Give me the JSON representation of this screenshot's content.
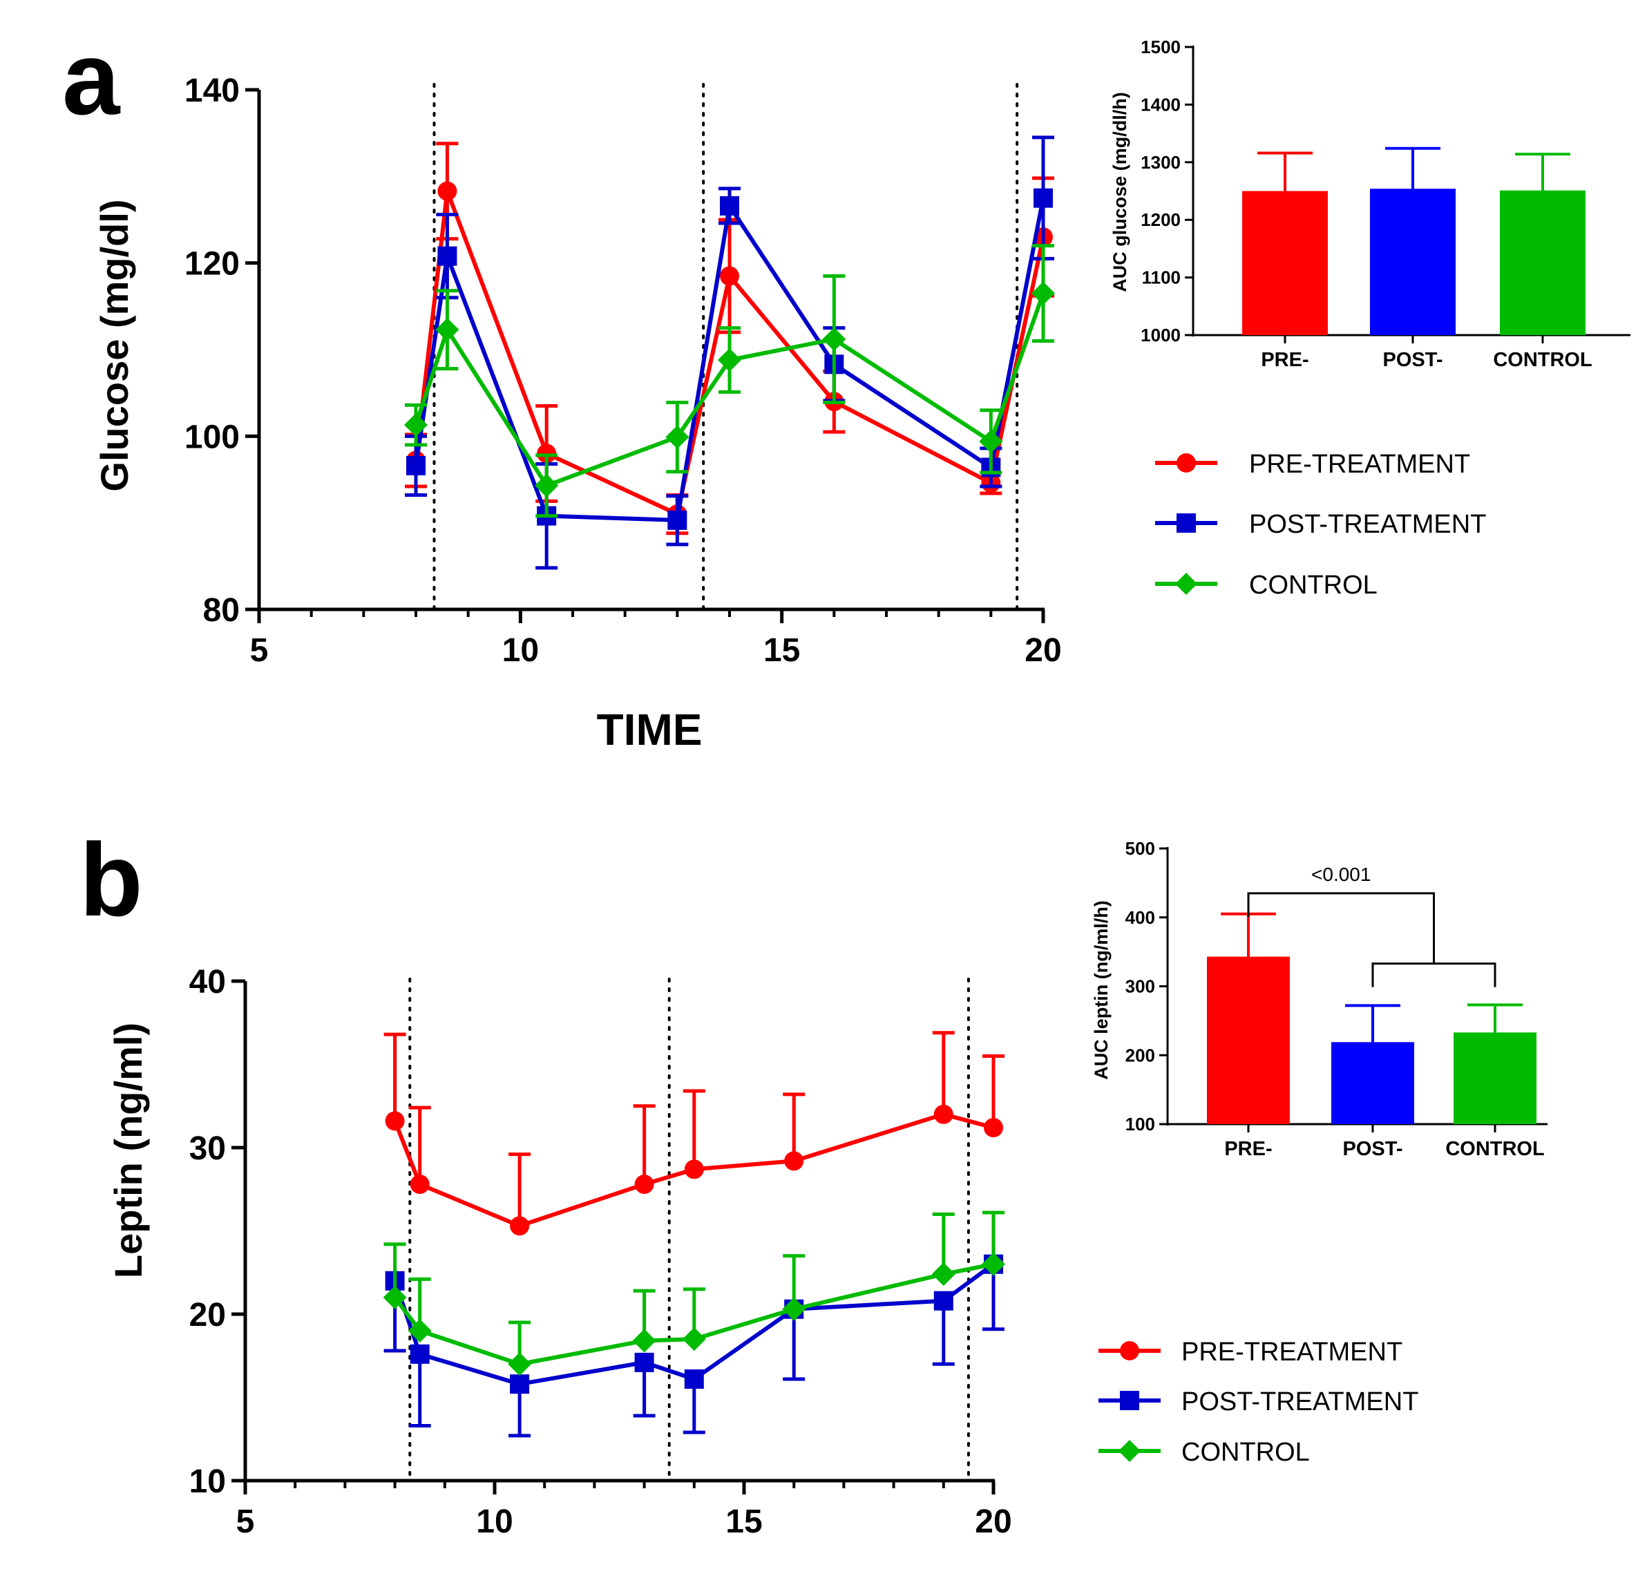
{
  "chart_data": [
    {
      "panel": "a",
      "type": "line",
      "xlabel": "TIME",
      "ylabel": "Glucose (mg/dl)",
      "xlim": [
        5,
        20
      ],
      "ylim": [
        80,
        140
      ],
      "xticks": [
        "5",
        "10",
        "15",
        "20"
      ],
      "yticks": [
        "80",
        "100",
        "120",
        "140"
      ],
      "vlines": [
        8.35,
        13.5,
        19.5
      ],
      "series": [
        {
          "name": "PRE-TREATMENT",
          "color": "#ff0000",
          "marker": "circle",
          "x": [
            8,
            8.6,
            10.5,
            13,
            14,
            16,
            19,
            20
          ],
          "y": [
            97.2,
            128.3,
            98,
            91,
            118.5,
            104,
            94.6,
            123
          ],
          "err": [
            3,
            5.5,
            5.5,
            2.2,
            6.5,
            3.5,
            1.2,
            6.8
          ]
        },
        {
          "name": "POST-TREATMENT",
          "color": "#0000cc",
          "marker": "square",
          "x": [
            8,
            8.6,
            10.5,
            13,
            14,
            16,
            19,
            20
          ],
          "y": [
            96.6,
            120.8,
            90.8,
            90.3,
            126.6,
            108.3,
            96.4,
            127.5
          ],
          "err": [
            3.4,
            4.8,
            6,
            2.8,
            2,
            4.2,
            2.2,
            7
          ]
        },
        {
          "name": "CONTROL",
          "color": "#00bb00",
          "marker": "diamond",
          "x": [
            8,
            8.6,
            10.5,
            13,
            14,
            16,
            19,
            20
          ],
          "y": [
            101.3,
            112.3,
            94.3,
            99.9,
            108.8,
            111.2,
            99.4,
            116.5
          ],
          "err": [
            2.3,
            4.5,
            3.5,
            4,
            3.7,
            7.3,
            3.6,
            5.5
          ]
        }
      ],
      "legend": [
        "PRE-TREATMENT",
        "POST-TREATMENT",
        "CONTROL"
      ],
      "legend_position": "right"
    },
    {
      "panel": "a-inset",
      "type": "bar",
      "ylabel": "AUC glucose (mg/dl/h)",
      "categories": [
        "PRE-",
        "POST-",
        "CONTROL"
      ],
      "values": [
        1250,
        1254,
        1251
      ],
      "errors": [
        66,
        70,
        63
      ],
      "colors": [
        "#ff0000",
        "#0000ff",
        "#00bb00"
      ],
      "ylim": [
        1000,
        1500
      ],
      "yticks": [
        "1000",
        "1100",
        "1200",
        "1300",
        "1400",
        "1500"
      ]
    },
    {
      "panel": "b",
      "type": "line",
      "xlabel": "",
      "ylabel": "Leptin (ng/ml)",
      "xlim": [
        5,
        20
      ],
      "ylim": [
        10,
        40
      ],
      "xticks": [
        "5",
        "10",
        "15",
        "20"
      ],
      "yticks": [
        "10",
        "20",
        "30",
        "40"
      ],
      "vlines": [
        8.3,
        13.5,
        19.5
      ],
      "series": [
        {
          "name": "PRE-TREATMENT",
          "color": "#ff0000",
          "marker": "circle",
          "x": [
            8,
            8.5,
            10.5,
            13,
            14,
            16,
            19,
            20
          ],
          "y": [
            31.6,
            27.8,
            25.3,
            27.8,
            28.7,
            29.2,
            32,
            31.2
          ],
          "err": [
            5.2,
            4.6,
            4.3,
            4.7,
            4.7,
            4,
            4.9,
            4.3
          ],
          "err_dir": "up"
        },
        {
          "name": "POST-TREATMENT",
          "color": "#0000cc",
          "marker": "square",
          "x": [
            8,
            8.5,
            10.5,
            13,
            14,
            16,
            19,
            20
          ],
          "y": [
            22,
            17.6,
            15.8,
            17.1,
            16.1,
            20.3,
            20.8,
            23
          ],
          "err": [
            4.2,
            4.3,
            3.1,
            3.2,
            3.2,
            4.2,
            3.8,
            3.9
          ],
          "err_dir": "down"
        },
        {
          "name": "CONTROL",
          "color": "#00bb00",
          "marker": "diamond",
          "x": [
            8,
            8.5,
            10.5,
            13,
            14,
            16,
            19,
            20
          ],
          "y": [
            21,
            19,
            17,
            18.4,
            18.5,
            20.3,
            22.4,
            23
          ],
          "err": [
            3.2,
            3.1,
            2.5,
            3,
            3,
            3.2,
            3.6,
            3.1
          ],
          "err_dir": "up"
        }
      ],
      "legend": [
        "PRE-TREATMENT",
        "POST-TREATMENT",
        "CONTROL"
      ],
      "legend_position": "right"
    },
    {
      "panel": "b-inset",
      "type": "bar",
      "ylabel": "AUC leptin (ng/ml/h)",
      "categories": [
        "PRE-",
        "POST-",
        "CONTROL"
      ],
      "values": [
        343,
        219,
        233
      ],
      "errors": [
        62,
        53,
        40
      ],
      "colors": [
        "#ff0000",
        "#0000ff",
        "#00bb00"
      ],
      "ylim": [
        100,
        500
      ],
      "yticks": [
        "100",
        "200",
        "300",
        "400",
        "500"
      ],
      "annotation": "<0.001"
    }
  ]
}
